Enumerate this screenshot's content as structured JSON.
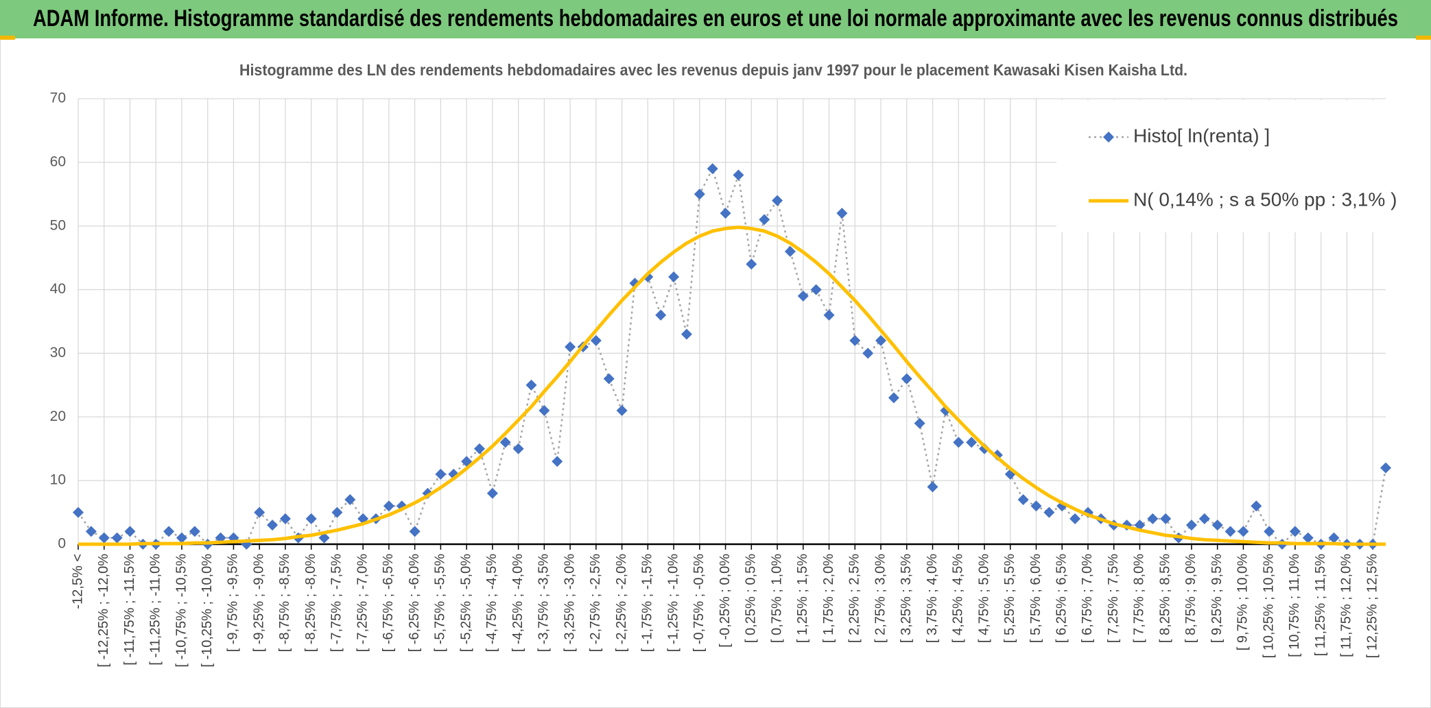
{
  "header": {
    "title": "ADAM Informe. Histogramme standardisé des rendements hebdomadaires en euros et une loi normale approximante avec les revenus connus distribués"
  },
  "chart_data": {
    "type": "line",
    "title": "Histogramme des LN des rendements hebdomadaires avec les revenus depuis janv 1997 pour le placement Kawasaki Kisen Kaisha Ltd.",
    "categories": [
      "-12,5% <",
      null,
      "[ -12,25% ; -12,0%",
      null,
      "[ -11,75% ; -11,5%",
      null,
      "[ -11,25% ; -11,0%",
      null,
      "[ -10,75% ; -10,5%",
      null,
      "[ -10,25% ; -10,0%",
      null,
      "[ -9,75% ; -9,5%",
      null,
      "[ -9,25% ; -9,0%",
      null,
      "[ -8,75% ; -8,5%",
      null,
      "[ -8,25% ; -8,0%",
      null,
      "[ -7,75% ; -7,5%",
      null,
      "[ -7,25% ; -7,0%",
      null,
      "[ -6,75% ; -6,5%",
      null,
      "[ -6,25% ; -6,0%",
      null,
      "[ -5,75% ; -5,5%",
      null,
      "[ -5,25% ; -5,0%",
      null,
      "[ -4,75% ; -4,5%",
      null,
      "[ -4,25% ; -4,0%",
      null,
      "[ -3,75% ; -3,5%",
      null,
      "[ -3,25% ; -3,0%",
      null,
      "[ -2,75% ; -2,5%",
      null,
      "[ -2,25% ; -2,0%",
      null,
      "[ -1,75% ; -1,5%",
      null,
      "[ -1,25% ; -1,0%",
      null,
      "[ -0,75% ; -0,5%",
      null,
      "[ -0,25% ; 0,0%",
      null,
      "[ 0,25% ; 0,5%",
      null,
      "[ 0,75% ; 1,0%",
      null,
      "[ 1,25% ; 1,5%",
      null,
      "[ 1,75% ; 2,0%",
      null,
      "[ 2,25% ; 2,5%",
      null,
      "[ 2,75% ; 3,0%",
      null,
      "[ 3,25% ; 3,5%",
      null,
      "[ 3,75% ; 4,0%",
      null,
      "[ 4,25% ; 4,5%",
      null,
      "[ 4,75% ; 5,0%",
      null,
      "[ 5,25% ; 5,5%",
      null,
      "[ 5,75% ; 6,0%",
      null,
      "[ 6,25% ; 6,5%",
      null,
      "[ 6,75% ; 7,0%",
      null,
      "[ 7,25% ; 7,5%",
      null,
      "[ 7,75% ; 8,0%",
      null,
      "[ 8,25% ; 8,5%",
      null,
      "[ 8,75% ; 9,0%",
      null,
      "[ 9,25% ; 9,5%",
      null,
      "[ 9,75% ; 10,0%",
      null,
      "[ 10,25% ; 10,5%",
      null,
      "[ 10,75% ; 11,0%",
      null,
      "[ 11,25% ; 11,5%",
      null,
      "[ 11,75% ; 12,0%",
      null,
      "[ 12,25% ; 12,5%",
      null
    ],
    "series": [
      {
        "name": "Histo[ ln(renta) ]",
        "color": "#4472c4",
        "line_color": "#a5a5a5",
        "marker": "diamond",
        "linestyle": "dotted",
        "values": [
          5,
          2,
          1,
          1,
          2,
          0,
          0,
          2,
          1,
          2,
          0,
          1,
          1,
          0,
          5,
          3,
          4,
          1,
          4,
          1,
          5,
          7,
          4,
          4,
          6,
          6,
          2,
          8,
          11,
          11,
          13,
          15,
          8,
          16,
          15,
          25,
          21,
          13,
          31,
          31,
          32,
          26,
          21,
          41,
          42,
          36,
          42,
          33,
          55,
          59,
          52,
          58,
          44,
          51,
          54,
          46,
          39,
          40,
          36,
          52,
          32,
          30,
          32,
          23,
          26,
          19,
          9,
          21,
          16,
          16,
          15,
          14,
          11,
          7,
          6,
          5,
          6,
          4,
          5,
          4,
          3,
          3,
          3,
          4,
          4,
          1,
          3,
          4,
          3,
          2,
          2,
          6,
          2,
          0,
          2,
          1,
          0,
          1,
          0,
          0,
          0,
          12
        ]
      },
      {
        "name": "N( 0,14% ; s a 50% pp : 3,1% )",
        "color": "#ffc000",
        "marker": "none",
        "linestyle": "solid",
        "values": [
          0,
          0,
          0,
          0,
          0,
          0.1,
          0.1,
          0.1,
          0.1,
          0.2,
          0.2,
          0.3,
          0.4,
          0.5,
          0.6,
          0.7,
          0.9,
          1.2,
          1.4,
          1.8,
          2.2,
          2.7,
          3.2,
          3.9,
          4.6,
          5.5,
          6.5,
          7.6,
          8.9,
          10.3,
          11.9,
          13.6,
          15.4,
          17.4,
          19.5,
          21.6,
          24.0,
          26.3,
          28.7,
          31.2,
          33.6,
          36.0,
          38.3,
          40.4,
          42.5,
          44.3,
          45.9,
          47.3,
          48.4,
          49.2,
          49.6,
          49.8,
          49.6,
          49.2,
          48.4,
          47.3,
          45.9,
          44.3,
          42.5,
          40.4,
          38.3,
          36.0,
          33.6,
          31.2,
          28.7,
          26.3,
          24.0,
          21.6,
          19.5,
          17.4,
          15.4,
          13.6,
          11.9,
          10.3,
          8.9,
          7.6,
          6.5,
          5.5,
          4.6,
          3.9,
          3.2,
          2.7,
          2.2,
          1.8,
          1.4,
          1.2,
          0.9,
          0.7,
          0.6,
          0.5,
          0.4,
          0.3,
          0.2,
          0.2,
          0.1,
          0.1,
          0.1,
          0.1,
          0,
          0,
          0,
          0
        ]
      }
    ],
    "ylim": [
      0,
      70
    ],
    "yticks": [
      0,
      10,
      20,
      30,
      40,
      50,
      60,
      70
    ],
    "grid": true,
    "legend": "upper right"
  }
}
